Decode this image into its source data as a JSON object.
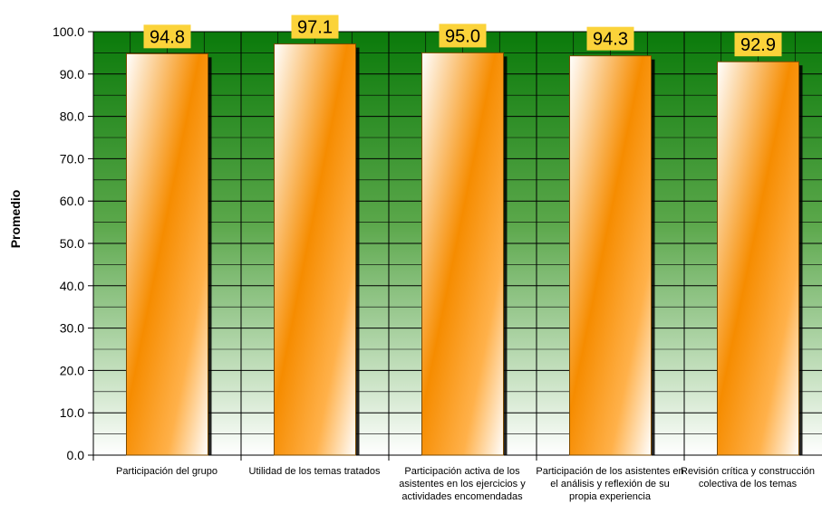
{
  "chart_data": {
    "type": "bar",
    "categories": [
      "Participación del grupo",
      "Utilidad de los temas tratados",
      "Participación activa de los asistentes en los ejercicios y actividades encomendadas",
      "Participación de los asistentes en el análisis y reflexión de su propia experiencia",
      "Revisión crítica y construcción colectiva de los temas"
    ],
    "values": [
      94.8,
      97.1,
      95.0,
      94.3,
      92.9
    ],
    "value_labels": [
      "94.8",
      "97.1",
      "95.0",
      "94.3",
      "92.9"
    ],
    "title": "",
    "xlabel": "",
    "ylabel": "Promedio",
    "ylim": [
      0,
      100
    ],
    "yticks": [
      "0.0",
      "10.0",
      "20.0",
      "30.0",
      "40.0",
      "50.0",
      "60.0",
      "70.0",
      "80.0",
      "90.0",
      "100.0"
    ],
    "grid": true,
    "legend": "none",
    "colors": {
      "plot_top": "#0a7a0a",
      "plot_bottom": "#ffffff",
      "bar_dark": "#f68c00",
      "bar_light": "#ffffff",
      "label_bg": "#fbd33a",
      "grid": "#000000"
    }
  }
}
